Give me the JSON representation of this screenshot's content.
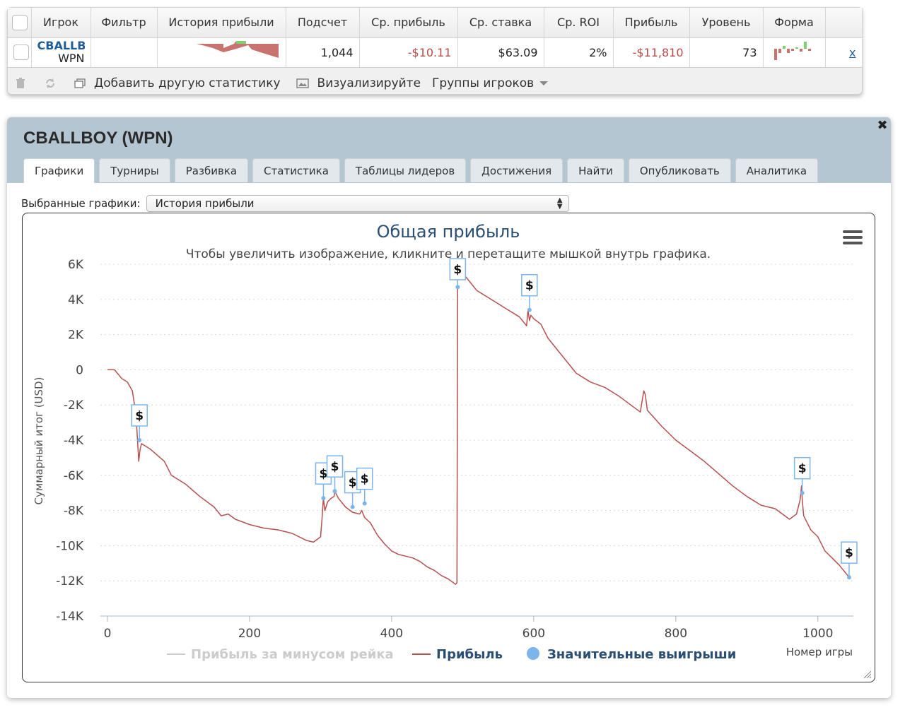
{
  "stats_table": {
    "headers": [
      "Игрок",
      "Фильтр",
      "История прибыли",
      "Подсчет",
      "Ср. прибыль",
      "Ср. ставка",
      "Ср. ROI",
      "Прибыль",
      "Уровень",
      "Форма"
    ],
    "row": {
      "player_name": "CBALLBOY",
      "network": "WPN",
      "filter": "",
      "count": "1,044",
      "avg_profit": "-$10.11",
      "avg_stake": "$63.09",
      "avg_roi": "2%",
      "profit": "-$11,810",
      "level": "73",
      "remove": "x"
    }
  },
  "toolbar": {
    "add_stat": "Добавить другую статистику",
    "visualize": "Визуализируйте",
    "player_groups": "Группы игроков"
  },
  "window": {
    "title": "CBALLBOY (WPN)",
    "tabs": [
      "Графики",
      "Турниры",
      "Разбивка",
      "Статистика",
      "Таблицы лидеров",
      "Достижения",
      "Найти",
      "Опубликовать",
      "Аналитика"
    ],
    "selected_tab": "Графики",
    "selected_charts_label": "Выбранные графики:",
    "selected_chart": "История прибыли"
  },
  "colors": {
    "profit_line": "#b5504e",
    "big_win_marker": "#7cb5ec",
    "title": "#2b4f73",
    "accent_link": "#1f5d99"
  },
  "chart_data": {
    "type": "line",
    "title": "Общая прибыль",
    "subtitle": "Чтобы увеличить изображение, кликните и перетащите мышкой внутрь графика.",
    "xlabel": "Номер игры",
    "ylabel": "Суммарный итог (USD)",
    "xlim": [
      0,
      1050
    ],
    "ylim": [
      -14000,
      6000
    ],
    "x_ticks": [
      "0",
      "200",
      "400",
      "600",
      "800",
      "1000"
    ],
    "x_tick_values": [
      0,
      200,
      400,
      600,
      800,
      1000
    ],
    "y_ticks": [
      "6K",
      "4K",
      "2K",
      "0",
      "-2K",
      "-4K",
      "-6K",
      "-8K",
      "-10K",
      "-12K",
      "-14K"
    ],
    "y_tick_values": [
      6000,
      4000,
      2000,
      0,
      -2000,
      -4000,
      -6000,
      -8000,
      -10000,
      -12000,
      -14000
    ],
    "grid": true,
    "legend": [
      "Прибыль за минусом рейка",
      "Прибыль",
      "Значительные выигрыши"
    ],
    "legend_position": "bottom",
    "series": [
      {
        "name": "Прибыль",
        "x": [
          0,
          10,
          20,
          28,
          35,
          40,
          42,
          44,
          46,
          48,
          60,
          80,
          90,
          110,
          130,
          150,
          160,
          170,
          180,
          200,
          220,
          240,
          260,
          280,
          290,
          300,
          302,
          304,
          306,
          310,
          315,
          319,
          320,
          325,
          335,
          345,
          355,
          358,
          362,
          370,
          380,
          390,
          400,
          410,
          420,
          430,
          440,
          450,
          460,
          470,
          480,
          490,
          492,
          493,
          495,
          500,
          510,
          520,
          540,
          560,
          580,
          590,
          592,
          594,
          596,
          600,
          610,
          620,
          640,
          660,
          680,
          700,
          720,
          740,
          750,
          755,
          757,
          760,
          780,
          800,
          820,
          840,
          860,
          880,
          900,
          920,
          940,
          960,
          970,
          975,
          977,
          978,
          980,
          990,
          1000,
          1010,
          1020,
          1030,
          1040,
          1044
        ],
        "y": [
          0,
          0,
          -500,
          -700,
          -1200,
          -2500,
          -3800,
          -5200,
          -4500,
          -4200,
          -4500,
          -5200,
          -6000,
          -6500,
          -7200,
          -7800,
          -8300,
          -8200,
          -8500,
          -8800,
          -9000,
          -9100,
          -9300,
          -9700,
          -9800,
          -9500,
          -8500,
          -7300,
          -8000,
          -7500,
          -7300,
          -7200,
          -6900,
          -7300,
          -7800,
          -8100,
          -8200,
          -8000,
          -8400,
          -8700,
          -9400,
          -9900,
          -10300,
          -10500,
          -10600,
          -10700,
          -10900,
          -11200,
          -11400,
          -11700,
          -11900,
          -12200,
          -12100,
          5700,
          5800,
          5500,
          5000,
          4500,
          4000,
          3500,
          3000,
          2500,
          3400,
          2800,
          3100,
          2900,
          2600,
          1800,
          800,
          -200,
          -700,
          -1000,
          -1500,
          -2100,
          -2400,
          -1200,
          -1400,
          -2300,
          -3200,
          -4000,
          -4600,
          -5200,
          -5900,
          -6600,
          -7200,
          -7700,
          -7900,
          -8500,
          -8200,
          -7400,
          -6600,
          -7400,
          -8300,
          -9100,
          -9500,
          -10300,
          -10700,
          -11100,
          -11600,
          -11800
        ]
      }
    ],
    "big_wins": {
      "name": "Значительные выигрыши",
      "x": [
        45,
        304,
        320,
        345,
        362,
        493,
        594,
        978,
        1044
      ],
      "y": [
        -4000,
        -7300,
        -6900,
        -7800,
        -7600,
        4700,
        3400,
        -7000,
        -11800
      ],
      "label": "$"
    }
  }
}
